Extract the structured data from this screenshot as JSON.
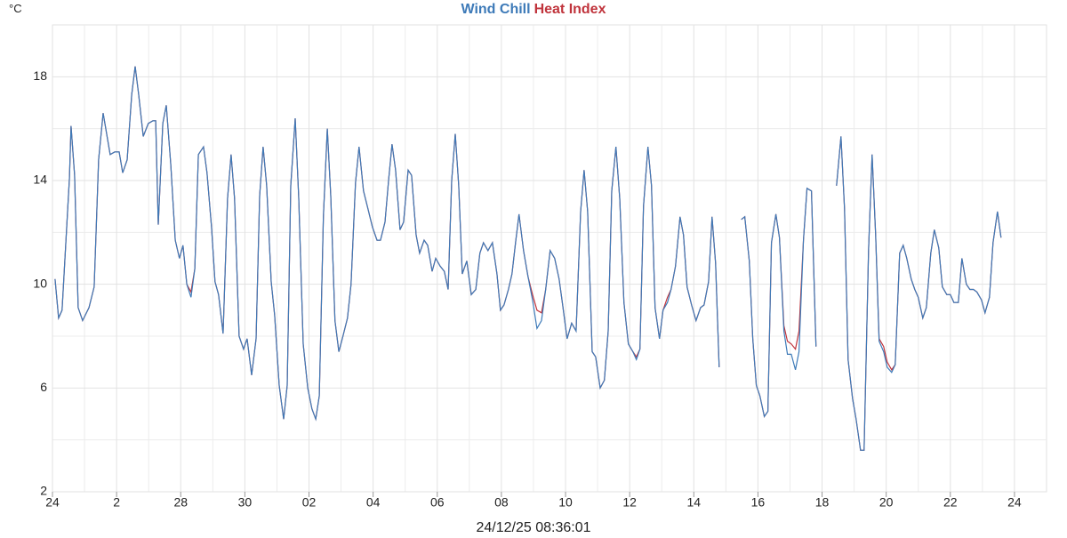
{
  "chart_data": {
    "type": "line",
    "y_label": "°C",
    "footer": "24/12/25 08:36:01",
    "xlim": [
      0,
      31
    ],
    "ylim": [
      2,
      20
    ],
    "xticks": [
      {
        "value": 0,
        "label": "24"
      },
      2,
      {
        "value": 4,
        "label": "28"
      },
      {
        "value": 6,
        "label": "30"
      },
      {
        "value": 8,
        "label": "02"
      },
      {
        "value": 10,
        "label": "04"
      },
      {
        "value": 12,
        "label": "06"
      },
      {
        "value": 14,
        "label": "08"
      },
      {
        "value": 16,
        "label": "10"
      },
      {
        "value": 18,
        "label": "12"
      },
      {
        "value": 20,
        "label": "14"
      },
      {
        "value": 22,
        "label": "16"
      },
      {
        "value": 24,
        "label": "18"
      },
      {
        "value": 26,
        "label": "20"
      },
      {
        "value": 28,
        "label": "22"
      },
      {
        "value": 30,
        "label": "24"
      }
    ],
    "yticks": [
      2,
      6,
      10,
      14,
      18
    ],
    "grid": true,
    "minor_grid": true,
    "x": [
      0.08,
      0.19,
      0.3,
      0.53,
      0.58,
      0.69,
      0.8,
      0.94,
      1.14,
      1.3,
      1.44,
      1.58,
      1.8,
      1.94,
      2.08,
      2.19,
      2.33,
      2.47,
      2.58,
      2.69,
      2.83,
      2.99,
      3.13,
      3.22,
      3.3,
      3.44,
      3.55,
      3.69,
      3.83,
      3.96,
      4.07,
      4.19,
      4.32,
      4.44,
      4.55,
      4.71,
      4.82,
      4.96,
      5.07,
      5.18,
      5.32,
      5.46,
      5.57,
      5.68,
      5.82,
      5.96,
      6.07,
      6.21,
      6.35,
      6.46,
      6.57,
      6.68,
      6.82,
      6.93,
      7.07,
      7.21,
      7.32,
      7.43,
      7.57,
      7.68,
      7.82,
      7.96,
      8.09,
      8.21,
      8.32,
      8.45,
      8.57,
      8.68,
      8.81,
      8.93,
      9.06,
      9.2,
      9.31,
      9.45,
      9.56,
      9.7,
      9.84,
      9.98,
      10.12,
      10.23,
      10.37,
      10.48,
      10.59,
      10.7,
      10.84,
      10.95,
      11.09,
      11.2,
      11.34,
      11.45,
      11.59,
      11.7,
      11.84,
      11.95,
      12.09,
      12.22,
      12.34,
      12.45,
      12.56,
      12.67,
      12.78,
      12.92,
      13.06,
      13.2,
      13.33,
      13.44,
      13.58,
      13.72,
      13.86,
      13.97,
      14.08,
      14.22,
      14.33,
      14.44,
      14.55,
      14.69,
      14.83,
      14.97,
      15.11,
      15.25,
      15.38,
      15.52,
      15.66,
      15.8,
      15.91,
      16.05,
      16.19,
      16.33,
      16.47,
      16.58,
      16.69,
      16.83,
      16.94,
      17.08,
      17.21,
      17.33,
      17.44,
      17.57,
      17.69,
      17.82,
      17.96,
      18.1,
      18.21,
      18.32,
      18.43,
      18.57,
      18.68,
      18.79,
      18.93,
      19.04,
      19.18,
      19.29,
      19.43,
      19.57,
      19.68,
      19.79,
      19.93,
      20.07,
      20.21,
      20.32,
      20.46,
      20.57,
      20.68,
      20.79,
      21.2,
      21.48,
      21.59,
      21.73,
      21.84,
      21.95,
      22.06,
      22.2,
      22.31,
      22.42,
      22.56,
      22.67,
      22.81,
      22.92,
      23.04,
      23.17,
      23.28,
      23.42,
      23.53,
      23.67,
      23.81,
      24.2,
      24.45,
      24.59,
      24.7,
      24.81,
      24.95,
      25.06,
      25.2,
      25.31,
      25.45,
      25.56,
      25.67,
      25.78,
      25.92,
      26.03,
      26.17,
      26.28,
      26.42,
      26.53,
      26.64,
      26.78,
      26.89,
      27.0,
      27.14,
      27.25,
      27.39,
      27.5,
      27.64,
      27.75,
      27.89,
      28.0,
      28.11,
      28.25,
      28.36,
      28.5,
      28.61,
      28.72,
      28.83,
      28.97,
      29.08,
      29.22,
      29.33,
      29.47,
      29.58
    ],
    "series": [
      {
        "name": "Wind Chill",
        "color": "#3d7ab8",
        "values": [
          10.2,
          8.7,
          9.0,
          14.1,
          16.1,
          14.2,
          9.1,
          8.6,
          9.1,
          9.9,
          14.8,
          16.6,
          15.0,
          15.1,
          15.1,
          14.3,
          14.8,
          17.3,
          18.4,
          17.3,
          15.7,
          16.2,
          16.3,
          16.3,
          12.3,
          16.2,
          16.9,
          14.6,
          11.7,
          11.0,
          11.5,
          10.0,
          9.5,
          10.6,
          15.0,
          15.3,
          14.3,
          12.2,
          10.1,
          9.6,
          8.1,
          13.3,
          15.0,
          13.3,
          8.0,
          7.5,
          7.9,
          6.5,
          7.9,
          13.4,
          15.3,
          13.8,
          10.1,
          8.8,
          6.1,
          4.8,
          6.1,
          13.8,
          16.4,
          13.3,
          7.7,
          6.0,
          5.2,
          4.8,
          5.7,
          12.6,
          16.0,
          13.4,
          8.6,
          7.4,
          8.0,
          8.7,
          10.0,
          13.9,
          15.3,
          13.6,
          12.9,
          12.2,
          11.7,
          11.7,
          12.4,
          14.0,
          15.4,
          14.4,
          12.1,
          12.4,
          14.4,
          14.2,
          11.9,
          11.2,
          11.7,
          11.5,
          10.5,
          11.0,
          10.7,
          10.5,
          9.8,
          14.0,
          15.8,
          13.8,
          10.4,
          10.9,
          9.6,
          9.8,
          11.2,
          11.6,
          11.3,
          11.6,
          10.4,
          9.0,
          9.2,
          9.8,
          10.4,
          11.6,
          12.7,
          11.3,
          10.3,
          9.4,
          8.3,
          8.6,
          9.8,
          11.3,
          11.0,
          10.2,
          9.2,
          7.9,
          8.5,
          8.2,
          12.8,
          14.4,
          12.8,
          7.4,
          7.2,
          6.0,
          6.3,
          8.2,
          13.6,
          15.3,
          13.3,
          9.3,
          7.7,
          7.4,
          7.1,
          7.5,
          13.0,
          15.3,
          13.8,
          9.1,
          7.9,
          9.0,
          9.3,
          9.8,
          10.7,
          12.6,
          11.9,
          9.9,
          9.2,
          8.6,
          9.1,
          9.2,
          10.1,
          12.6,
          10.8,
          6.8,
          null,
          12.5,
          12.6,
          10.9,
          7.9,
          6.1,
          5.7,
          4.9,
          5.1,
          11.6,
          12.7,
          11.8,
          8.2,
          7.3,
          7.3,
          6.7,
          7.4,
          11.7,
          13.7,
          13.6,
          7.6,
          null,
          13.8,
          15.7,
          12.9,
          7.1,
          5.6,
          4.8,
          3.6,
          3.6,
          11.3,
          15.0,
          11.9,
          7.8,
          7.4,
          6.8,
          6.6,
          6.9,
          11.2,
          11.5,
          11.0,
          10.2,
          9.8,
          9.5,
          8.7,
          9.1,
          11.2,
          12.1,
          11.4,
          9.9,
          9.6,
          9.6,
          9.3,
          9.3,
          11.0,
          10.0,
          9.8,
          9.8,
          9.7,
          9.4,
          8.9,
          9.5,
          11.6,
          12.8,
          11.8
        ]
      },
      {
        "name": "Heat Index",
        "color": "#c0343c",
        "values": [
          10.2,
          8.7,
          9.0,
          14.1,
          16.1,
          14.2,
          9.1,
          8.6,
          9.1,
          9.9,
          14.8,
          16.6,
          15.0,
          15.1,
          15.1,
          14.3,
          14.8,
          17.3,
          18.4,
          17.3,
          15.7,
          16.2,
          16.3,
          16.3,
          12.3,
          16.2,
          16.9,
          14.6,
          11.7,
          11.0,
          11.5,
          10.0,
          9.7,
          10.6,
          15.0,
          15.3,
          14.3,
          12.2,
          10.1,
          9.6,
          8.1,
          13.3,
          15.0,
          13.3,
          8.0,
          7.5,
          7.9,
          6.5,
          7.9,
          13.4,
          15.3,
          13.8,
          10.1,
          8.8,
          6.1,
          4.8,
          6.1,
          13.8,
          16.4,
          13.3,
          7.7,
          6.0,
          5.2,
          4.8,
          5.7,
          12.6,
          16.0,
          13.4,
          8.6,
          7.4,
          8.0,
          8.7,
          10.0,
          13.9,
          15.3,
          13.6,
          12.9,
          12.2,
          11.7,
          11.7,
          12.4,
          14.0,
          15.4,
          14.4,
          12.1,
          12.4,
          14.4,
          14.2,
          11.9,
          11.2,
          11.7,
          11.5,
          10.5,
          11.0,
          10.7,
          10.5,
          9.8,
          14.0,
          15.8,
          13.8,
          10.4,
          10.9,
          9.6,
          9.8,
          11.2,
          11.6,
          11.3,
          11.6,
          10.4,
          9.0,
          9.2,
          9.8,
          10.4,
          11.6,
          12.7,
          11.3,
          10.3,
          9.6,
          9.0,
          8.9,
          9.8,
          11.3,
          11.0,
          10.2,
          9.2,
          7.9,
          8.5,
          8.2,
          12.8,
          14.4,
          12.8,
          7.4,
          7.2,
          6.0,
          6.3,
          8.2,
          13.6,
          15.3,
          13.3,
          9.3,
          7.7,
          7.4,
          7.2,
          7.5,
          13.0,
          15.3,
          13.8,
          9.1,
          7.9,
          9.0,
          9.5,
          9.8,
          10.7,
          12.6,
          11.9,
          9.9,
          9.2,
          8.6,
          9.1,
          9.2,
          10.1,
          12.6,
          10.8,
          6.8,
          null,
          12.5,
          12.6,
          10.9,
          7.9,
          6.1,
          5.7,
          4.9,
          5.1,
          11.6,
          12.7,
          11.8,
          8.4,
          7.8,
          7.7,
          7.5,
          8.2,
          11.7,
          13.7,
          13.6,
          7.6,
          null,
          13.8,
          15.7,
          12.9,
          7.1,
          5.6,
          4.8,
          3.6,
          3.6,
          11.3,
          15.0,
          11.9,
          7.9,
          7.6,
          7.0,
          6.7,
          6.9,
          11.2,
          11.5,
          11.0,
          10.2,
          9.8,
          9.5,
          8.7,
          9.1,
          11.2,
          12.1,
          11.4,
          9.9,
          9.6,
          9.6,
          9.3,
          9.3,
          11.0,
          10.0,
          9.8,
          9.8,
          9.7,
          9.4,
          8.9,
          9.5,
          11.6,
          12.8,
          11.8
        ]
      }
    ]
  }
}
